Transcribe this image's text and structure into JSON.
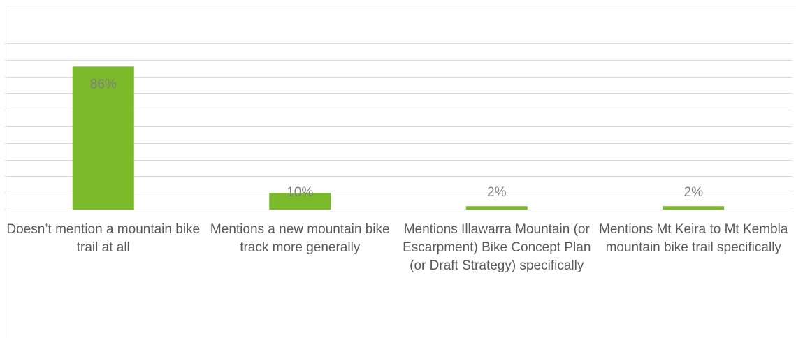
{
  "chart_data": {
    "type": "bar",
    "categories": [
      "Doesn’t mention a mountain bike trail at all",
      "Mentions a new mountain bike track more generally",
      "Mentions Illawarra Mountain (or Escarpment) Bike Concept Plan (or Draft Strategy) specifically",
      "Mentions Mt Keira to Mt Kembla mountain bike trail specifically"
    ],
    "values": [
      86,
      10,
      2,
      2
    ],
    "value_labels": [
      "86%",
      "10%",
      "2%",
      "2%"
    ],
    "color": "#7ab929",
    "ylim": [
      0,
      100
    ],
    "yticks": [
      0,
      10,
      20,
      30,
      40,
      50,
      60,
      70,
      80,
      90,
      100
    ],
    "grid": true
  }
}
